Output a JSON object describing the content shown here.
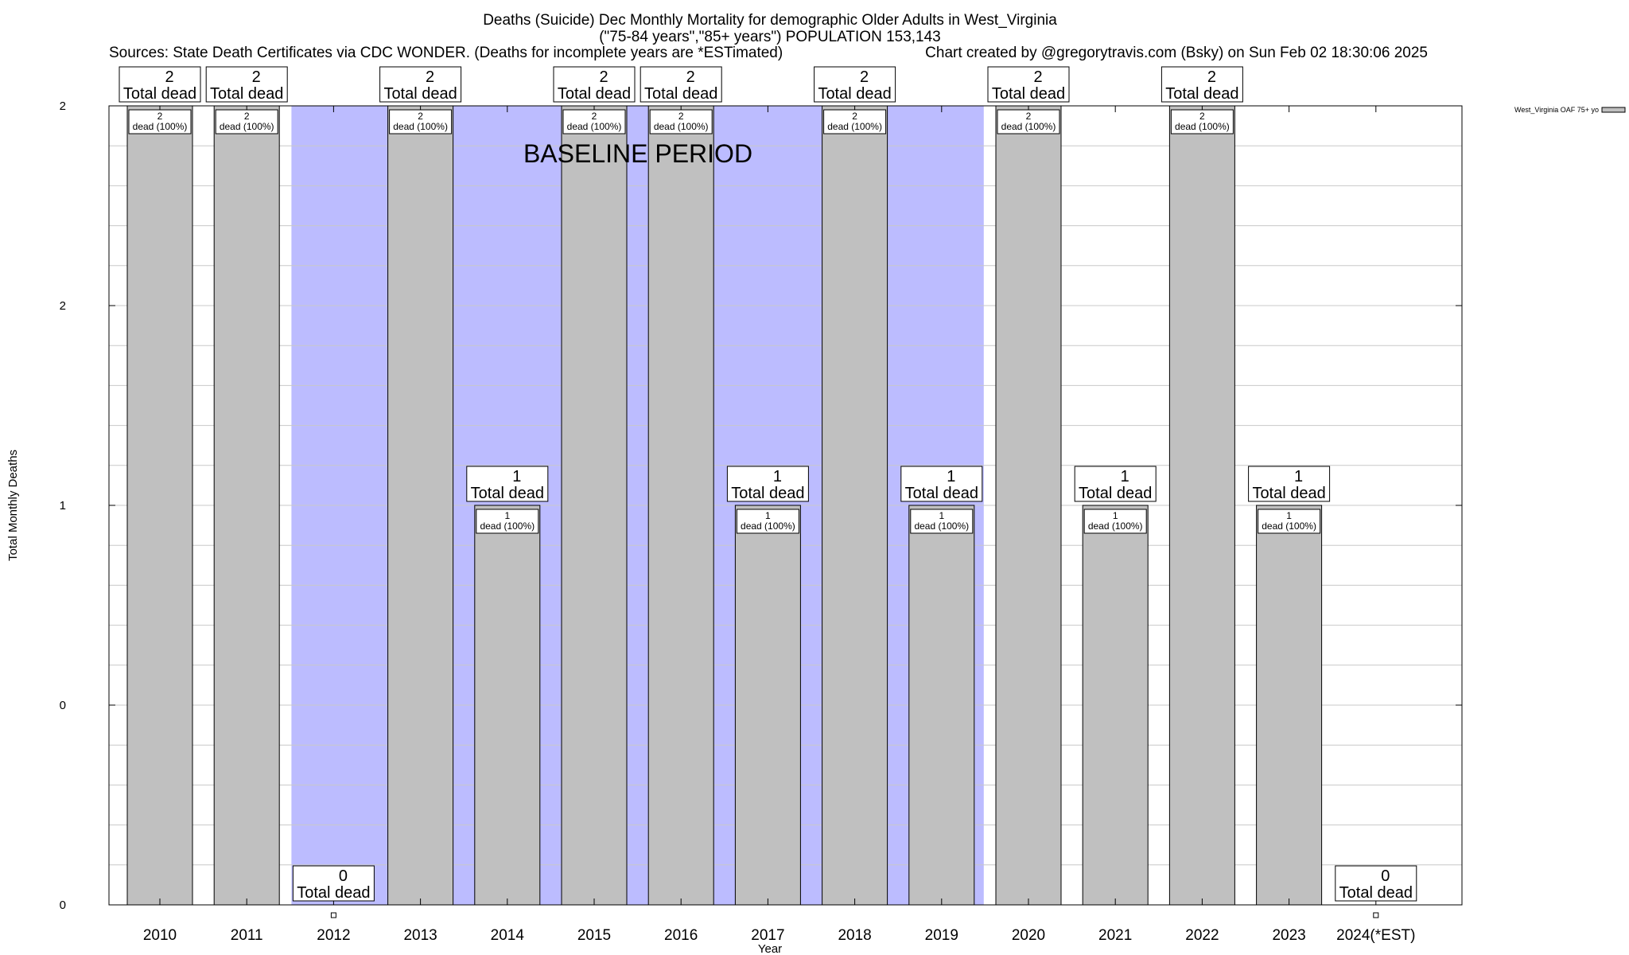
{
  "chart_data": {
    "type": "bar",
    "title_lines": [
      "Deaths (Suicide) Dec Monthly Mortality for demographic Older Adults in West_Virginia",
      "(\"75-84 years\",\"85+ years\") POPULATION 153,143"
    ],
    "source_left": "Sources: State Death Certificates via CDC WONDER. (Deaths for incomplete years are *ESTimated)",
    "source_right": "Chart created by @gregorytravis.com (Bsky) on Sun Feb 02 18:30:06 2025",
    "xlabel": "Year",
    "ylabel": "Total Monthly Deaths",
    "ylim": [
      0,
      2
    ],
    "y_ticks": [
      {
        "value": 0,
        "label": "0"
      },
      {
        "value": 0.5,
        "label": "0"
      },
      {
        "value": 1,
        "label": "1"
      },
      {
        "value": 1.5,
        "label": "2"
      },
      {
        "value": 2,
        "label": "2"
      }
    ],
    "grid": true,
    "categories": [
      "2010",
      "2011",
      "2012",
      "2013",
      "2014",
      "2015",
      "2016",
      "2017",
      "2018",
      "2019",
      "2020",
      "2021",
      "2022",
      "2023",
      "2024(*EST)"
    ],
    "series": [
      {
        "name": "West_Virginia OAF 75+ yo",
        "color": "#c0c0c0",
        "values": [
          2,
          2,
          0,
          2,
          1,
          2,
          2,
          1,
          2,
          1,
          2,
          1,
          2,
          1,
          0
        ]
      }
    ],
    "total_labels": [
      "2",
      "2",
      "0",
      "2",
      "1",
      "2",
      "2",
      "1",
      "2",
      "1",
      "2",
      "1",
      "2",
      "1",
      "0"
    ],
    "total_suffix": "Total dead",
    "inner_labels": [
      {
        "count": "2",
        "text": "dead (100%)"
      },
      {
        "count": "2",
        "text": "dead (100%)"
      },
      null,
      {
        "count": "2",
        "text": "dead (100%)"
      },
      {
        "count": "1",
        "text": "dead (100%)"
      },
      {
        "count": "2",
        "text": "dead (100%)"
      },
      {
        "count": "2",
        "text": "dead (100%)"
      },
      {
        "count": "1",
        "text": "dead (100%)"
      },
      {
        "count": "2",
        "text": "dead (100%)"
      },
      {
        "count": "1",
        "text": "dead (100%)"
      },
      {
        "count": "2",
        "text": "dead (100%)"
      },
      {
        "count": "1",
        "text": "dead (100%)"
      },
      {
        "count": "2",
        "text": "dead (100%)"
      },
      {
        "count": "1",
        "text": "dead (100%)"
      },
      null
    ],
    "baseline_period": {
      "label": "BASELINE PERIOD",
      "start": "2012",
      "end": "2019",
      "color": "#bcbcff"
    },
    "legend": {
      "placement": "top-right",
      "entries": [
        "West_Virginia OAF 75+ yo"
      ]
    }
  }
}
